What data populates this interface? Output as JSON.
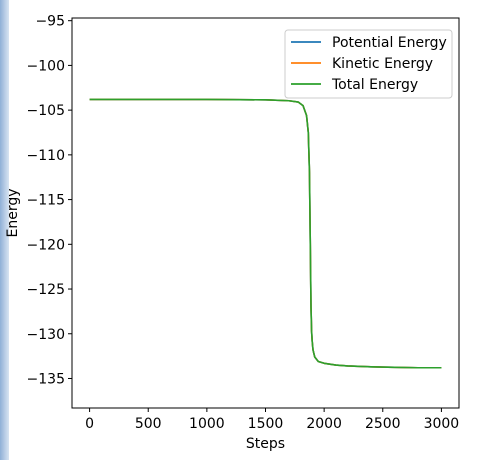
{
  "chart_data": {
    "type": "line",
    "title": "",
    "xlabel": "Steps",
    "ylabel": "Energy",
    "xlim": [
      -150,
      3150
    ],
    "ylim": [
      -138.3,
      -94.7
    ],
    "xticks": [
      0,
      500,
      1000,
      1500,
      2000,
      2500,
      3000
    ],
    "yticks": [
      -95,
      -100,
      -105,
      -110,
      -115,
      -120,
      -125,
      -130,
      -135
    ],
    "xtick_labels": [
      "0",
      "500",
      "1000",
      "1500",
      "2000",
      "2500",
      "3000"
    ],
    "ytick_labels": [
      "−95",
      "−100",
      "−105",
      "−110",
      "−115",
      "−120",
      "−125",
      "−130",
      "−135"
    ],
    "grid": false,
    "legend_position": "upper right",
    "x": [
      0,
      500,
      1000,
      1500,
      1700,
      1780,
      1820,
      1850,
      1865,
      1875,
      1882,
      1888,
      1893,
      1898,
      1905,
      1920,
      1950,
      2000,
      2100,
      2200,
      2400,
      2600,
      2800,
      3000
    ],
    "series": [
      {
        "name": "Potential Energy",
        "color": "#1f77b4",
        "values": [
          -103.8,
          -103.8,
          -103.8,
          -103.85,
          -103.95,
          -104.1,
          -104.5,
          -105.6,
          -107.5,
          -112,
          -120,
          -127,
          -129.7,
          -130.8,
          -131.8,
          -132.6,
          -133.1,
          -133.3,
          -133.5,
          -133.6,
          -133.7,
          -133.75,
          -133.8,
          -133.8
        ]
      },
      {
        "name": "Kinetic Energy",
        "color": "#ff7f0e",
        "values": [
          -103.8,
          -103.8,
          -103.8,
          -103.85,
          -103.95,
          -104.1,
          -104.5,
          -105.6,
          -107.5,
          -112,
          -120,
          -127,
          -129.7,
          -130.8,
          -131.8,
          -132.6,
          -133.1,
          -133.3,
          -133.5,
          -133.6,
          -133.7,
          -133.75,
          -133.8,
          -133.8
        ]
      },
      {
        "name": "Total Energy",
        "color": "#2ca02c",
        "values": [
          -103.8,
          -103.8,
          -103.8,
          -103.85,
          -103.95,
          -104.1,
          -104.5,
          -105.6,
          -107.5,
          -112,
          -120,
          -127,
          -129.7,
          -130.8,
          -131.8,
          -132.6,
          -133.1,
          -133.3,
          -133.5,
          -133.6,
          -133.7,
          -133.75,
          -133.8,
          -133.8
        ]
      }
    ]
  }
}
